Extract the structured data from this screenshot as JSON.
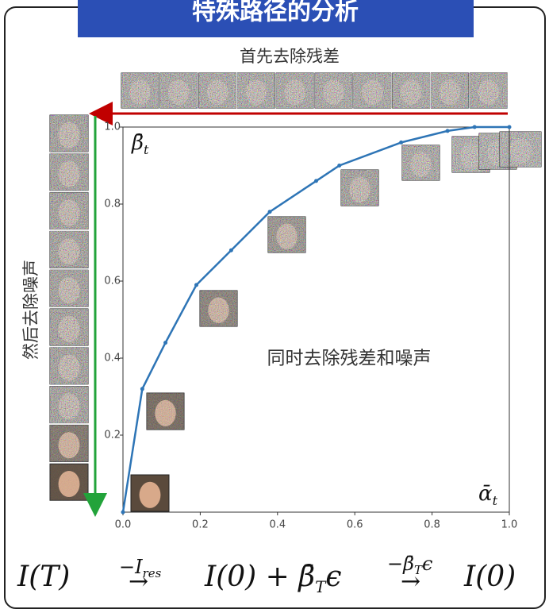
{
  "title": "特殊路径的分析",
  "top_label": "首先去除残差",
  "side_label": "然后去除噪声",
  "chart_data": {
    "type": "line",
    "annotation": "同时去除残差和噪声",
    "ylabel": "β̄",
    "ylabel_sub": "t",
    "xlabel": "ᾱ",
    "xlabel_sub": "t",
    "x": [
      0,
      0.05,
      0.11,
      0.19,
      0.28,
      0.38,
      0.5,
      0.56,
      0.72,
      0.84,
      0.91,
      1.0
    ],
    "values": [
      0,
      0.32,
      0.44,
      0.59,
      0.68,
      0.78,
      0.86,
      0.9,
      0.96,
      0.99,
      1.0,
      1.0
    ],
    "color": "#2e75b6",
    "xlim": [
      0,
      1
    ],
    "ylim": [
      0,
      1
    ],
    "xticks": [
      {
        "value": 0,
        "label": "0.0"
      },
      0.2,
      0.4,
      0.6,
      0.8,
      {
        "value": 1,
        "label": "1.0"
      }
    ],
    "yticks": [
      0.2,
      0.4,
      0.6,
      0.8,
      {
        "value": 1,
        "label": "1.0"
      }
    ]
  },
  "formula": {
    "lhs": "I(T)",
    "op1": "−I",
    "op1_sub": "res",
    "arrow": "→",
    "mid": "I(0) + β̄",
    "mid_sub": "T",
    "eps": "ϵ",
    "op2": "−β̄",
    "op2_sub": "T",
    "rhs": "I(0)"
  }
}
